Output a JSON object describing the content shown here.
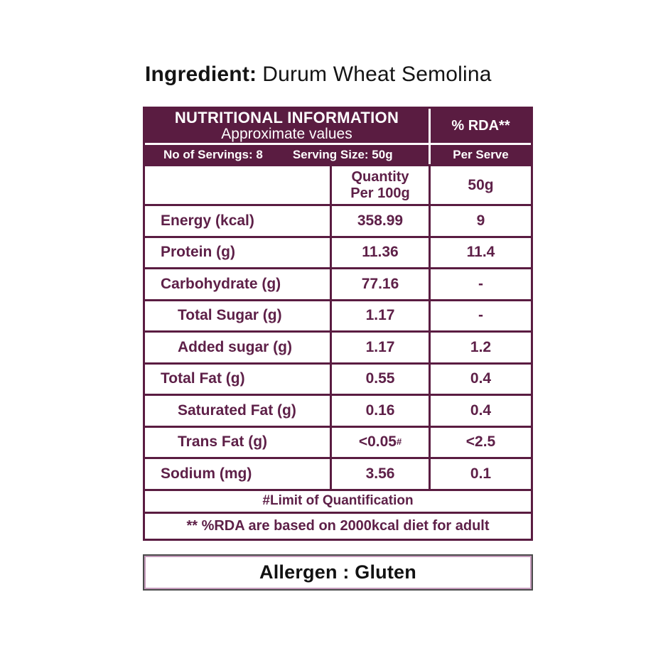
{
  "title": {
    "label": "Ingredient:",
    "value": "Durum Wheat Semolina"
  },
  "colors": {
    "plum": "#5a1c41",
    "body_text": "#5e2048",
    "header_text": "#ffffff",
    "title_text": "#141414",
    "allergen_border_outer": "#4b4b4b",
    "allergen_border_inner": "#c49bbb"
  },
  "table": {
    "header": {
      "title": "NUTRITIONAL INFORMATION",
      "subtitle": "Approximate values",
      "rda_label": "% RDA**",
      "servings_label": "No of Servings: 8",
      "serving_size_label": "Serving Size:  50g",
      "per_serve_label": "Per Serve"
    },
    "columns": {
      "quantity_line1": "Quantity",
      "quantity_line2": "Per 100g",
      "serve_quantity": "50g"
    },
    "rows": [
      {
        "label": "Energy (kcal)",
        "per100": "358.99",
        "rda": "9"
      },
      {
        "label": "Protein (g)",
        "per100": "11.36",
        "rda": "11.4"
      },
      {
        "label": "Carbohydrate (g)",
        "per100": "77.16",
        "rda": "-"
      },
      {
        "label": "Total Sugar (g)",
        "per100": "1.17",
        "rda": "-"
      },
      {
        "label": "Added sugar (g)",
        "per100": "1.17",
        "rda": "1.2"
      },
      {
        "label": "Total Fat (g)",
        "per100": "0.55",
        "rda": "0.4"
      },
      {
        "label": "Saturated Fat (g)",
        "per100": "0.16",
        "rda": "0.4"
      },
      {
        "label": "Trans Fat (g)",
        "per100": "<0.05",
        "per100_sup": "#",
        "rda": "<2.5"
      },
      {
        "label": "Sodium (mg)",
        "per100": "3.56",
        "rda": "0.1"
      }
    ],
    "footnotes": {
      "loq": "#Limit of Quantification",
      "rda_basis": "** %RDA are based on 2000kcal diet for adult"
    }
  },
  "allergen": {
    "text": "Allergen : Gluten"
  }
}
